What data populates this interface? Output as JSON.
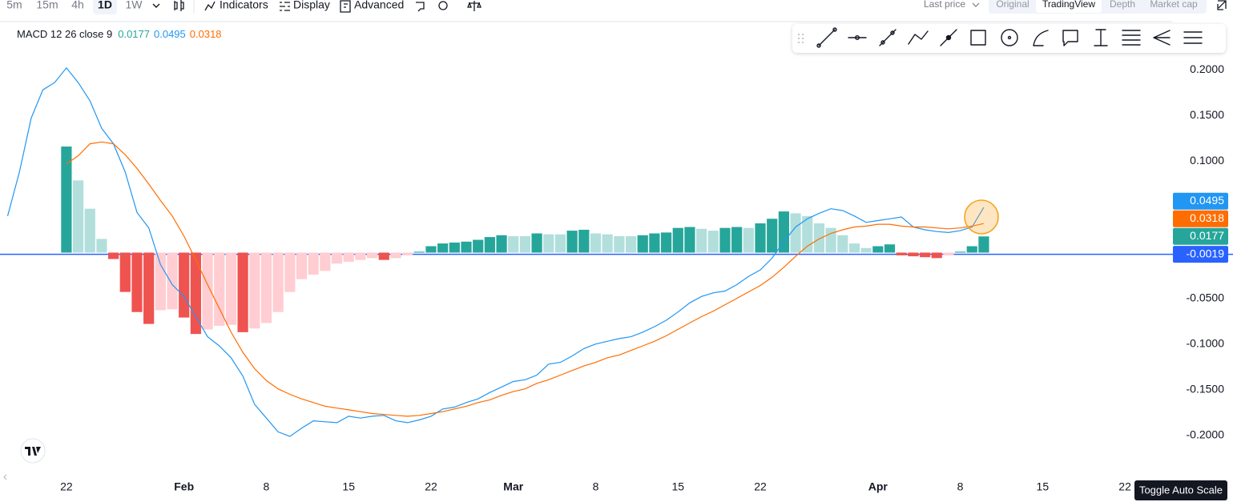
{
  "toolbar": {
    "intervals": [
      "5m",
      "15m",
      "4h",
      "1D",
      "1W"
    ],
    "active_interval": 3,
    "buttons": [
      "Indicators",
      "Display",
      "Advanced"
    ],
    "price_source": "Last price",
    "views": [
      "Original",
      "TradingView",
      "Depth",
      "Market cap"
    ],
    "active_view": 1
  },
  "tooltip": "Toggle Auto Scale",
  "chart_data": {
    "type": "combo",
    "indicator": "MACD 12 26 close 9",
    "categories": [
      null,
      null,
      null,
      null,
      null,
      "22",
      null,
      null,
      null,
      null,
      null,
      null,
      null,
      null,
      null,
      "Feb",
      null,
      null,
      null,
      null,
      null,
      null,
      "8",
      null,
      null,
      null,
      null,
      null,
      null,
      "15",
      null,
      null,
      null,
      null,
      null,
      null,
      "22",
      null,
      null,
      null,
      null,
      null,
      null,
      "Mar",
      null,
      null,
      null,
      null,
      null,
      null,
      "8",
      null,
      null,
      null,
      null,
      null,
      null,
      "15",
      null,
      null,
      null,
      null,
      null,
      null,
      "22",
      null,
      null,
      null,
      null,
      null,
      null,
      null,
      null,
      null,
      "Apr",
      null,
      null,
      null,
      null,
      null,
      null,
      "8",
      null,
      null,
      null,
      null,
      null,
      null,
      "15",
      null,
      null,
      null,
      null,
      null,
      null,
      "22",
      null,
      null,
      null
    ],
    "series": [
      {
        "type": "bar",
        "colors": {
          "rising_above": "#26a69a",
          "falling_above": "#b2dfdb",
          "falling_below": "#ef5350",
          "rising_below": "#ffcdd2"
        },
        "values": [
          null,
          null,
          null,
          null,
          null,
          0.116,
          0.079,
          0.048,
          0.015,
          -0.007,
          -0.043,
          -0.065,
          -0.078,
          -0.063,
          -0.062,
          -0.071,
          -0.089,
          -0.084,
          -0.08,
          -0.079,
          -0.087,
          -0.083,
          -0.077,
          -0.065,
          -0.043,
          -0.029,
          -0.024,
          -0.02,
          -0.012,
          -0.01,
          -0.008,
          -0.006,
          -0.008,
          -0.006,
          -0.003,
          0.001,
          0.007,
          0.01,
          0.011,
          0.012,
          0.014,
          0.017,
          0.019,
          0.018,
          0.018,
          0.021,
          0.02,
          0.02,
          0.024,
          0.025,
          0.021,
          0.02,
          0.018,
          0.018,
          0.019,
          0.021,
          0.022,
          0.027,
          0.028,
          0.026,
          0.024,
          0.027,
          0.028,
          0.027,
          0.032,
          0.037,
          0.045,
          0.043,
          0.04,
          0.032,
          0.027,
          0.019,
          0.01,
          0.005,
          0.007,
          0.009,
          -0.003,
          -0.004,
          -0.005,
          -0.006,
          -0.003,
          0.001,
          0.007,
          0.0177,
          null,
          null,
          null,
          null,
          null,
          null,
          null,
          null,
          null,
          null,
          null,
          null,
          null,
          null,
          null
        ]
      },
      {
        "type": "line",
        "color": "#2196f3",
        "values": [
          0.04,
          0.088,
          0.147,
          0.178,
          0.186,
          0.202,
          0.186,
          0.166,
          0.136,
          0.119,
          0.088,
          0.044,
          0.027,
          -0.013,
          -0.035,
          -0.048,
          -0.07,
          -0.092,
          -0.102,
          -0.115,
          -0.135,
          -0.166,
          -0.181,
          -0.196,
          -0.201,
          -0.192,
          -0.184,
          -0.185,
          -0.186,
          -0.179,
          -0.181,
          -0.179,
          -0.178,
          -0.184,
          -0.186,
          -0.183,
          -0.179,
          -0.171,
          -0.169,
          -0.164,
          -0.16,
          -0.153,
          -0.147,
          -0.141,
          -0.139,
          -0.134,
          -0.122,
          -0.12,
          -0.113,
          -0.105,
          -0.1,
          -0.097,
          -0.094,
          -0.092,
          -0.087,
          -0.081,
          -0.074,
          -0.065,
          -0.055,
          -0.048,
          -0.044,
          -0.042,
          -0.035,
          -0.026,
          -0.019,
          -0.006,
          0.012,
          0.028,
          0.037,
          0.043,
          0.048,
          0.046,
          0.04,
          0.033,
          0.035,
          0.037,
          0.039,
          0.028,
          0.025,
          0.023,
          0.022,
          0.024,
          0.028,
          0.0495,
          null,
          null,
          null,
          null,
          null,
          null,
          null,
          null,
          null,
          null,
          null,
          null,
          null,
          null,
          null
        ]
      },
      {
        "type": "line",
        "color": "#ff6d00",
        "values": [
          null,
          null,
          null,
          null,
          null,
          0.097,
          0.106,
          0.119,
          0.121,
          0.119,
          0.107,
          0.092,
          0.075,
          0.057,
          0.04,
          0.018,
          -0.008,
          -0.035,
          -0.061,
          -0.087,
          -0.109,
          -0.127,
          -0.14,
          -0.149,
          -0.155,
          -0.16,
          -0.164,
          -0.168,
          -0.17,
          -0.172,
          -0.174,
          -0.176,
          -0.177,
          -0.178,
          -0.179,
          -0.178,
          -0.176,
          -0.174,
          -0.171,
          -0.168,
          -0.164,
          -0.161,
          -0.156,
          -0.152,
          -0.149,
          -0.143,
          -0.139,
          -0.134,
          -0.129,
          -0.124,
          -0.12,
          -0.115,
          -0.112,
          -0.107,
          -0.102,
          -0.097,
          -0.091,
          -0.084,
          -0.077,
          -0.07,
          -0.064,
          -0.057,
          -0.05,
          -0.043,
          -0.036,
          -0.027,
          -0.016,
          -0.004,
          0.007,
          0.015,
          0.021,
          0.025,
          0.028,
          0.029,
          0.031,
          0.031,
          0.029,
          0.028,
          0.028,
          0.027,
          0.026,
          0.027,
          0.029,
          0.0318,
          null,
          null,
          null,
          null,
          null,
          null,
          null,
          null,
          null,
          null,
          null,
          null,
          null,
          null,
          null
        ]
      }
    ],
    "price_line": {
      "value": -0.0019,
      "color": "#2962ff"
    },
    "ylim": [
      -0.24,
      0.25
    ],
    "yticks": [
      {
        "value": 0.2,
        "label": "0.2000"
      },
      {
        "value": 0.15,
        "label": "0.1500"
      },
      {
        "value": 0.1,
        "label": "0.1000"
      },
      {
        "value": -0.05,
        "label": "-0.0500"
      },
      {
        "value": -0.1,
        "label": "-0.1000"
      },
      {
        "value": -0.15,
        "label": "-0.1500"
      },
      {
        "value": -0.2,
        "label": "-0.2000"
      }
    ]
  }
}
